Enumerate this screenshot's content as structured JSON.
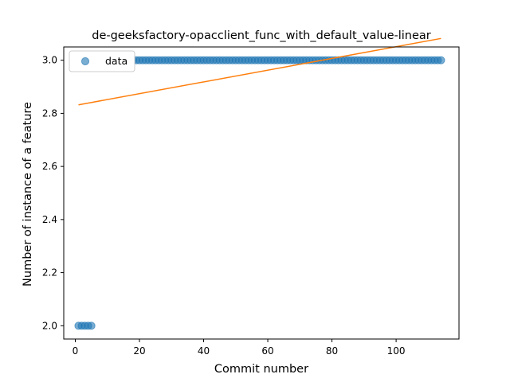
{
  "chart_data": {
    "type": "scatter",
    "title": "de-geeksfactory-opacclient_func_with_default_value-linear",
    "xlabel": "Commit number",
    "ylabel": "Number of instance of a feature",
    "xlim": [
      -3.6,
      119.6
    ],
    "ylim": [
      1.95,
      3.05
    ],
    "xticks": [
      0,
      20,
      40,
      60,
      80,
      100
    ],
    "yticks": [
      2.0,
      2.2,
      2.4,
      2.6,
      2.8,
      3.0
    ],
    "ytick_labels": [
      "2.0",
      "2.2",
      "2.4",
      "2.6",
      "2.8",
      "3.0"
    ],
    "grid": false,
    "legend": {
      "position": "top-left",
      "entries": [
        "data"
      ]
    },
    "series": [
      {
        "name": "data",
        "kind": "scatter",
        "color": "#1f77b4",
        "segments": [
          {
            "x_from": 1,
            "x_to": 5,
            "y": 2
          },
          {
            "x_from": 6,
            "x_to": 114,
            "y": 3
          }
        ]
      },
      {
        "kind": "line",
        "color": "#ff7f0e",
        "x": [
          1,
          114
        ],
        "y": [
          2.832,
          3.082
        ]
      }
    ]
  }
}
